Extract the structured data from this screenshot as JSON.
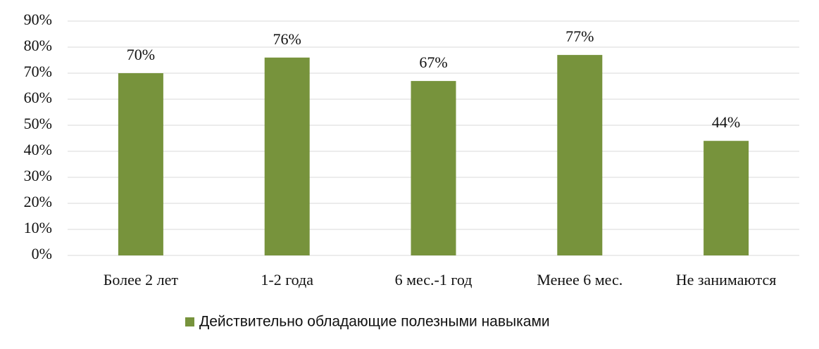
{
  "chart_data": {
    "type": "bar",
    "categories": [
      "Более 2 лет",
      "1-2 года",
      "6 мес.-1 год",
      "Менее 6 мес.",
      "Не занимаются"
    ],
    "series": [
      {
        "name": "Действительно обладающие полезными навыками",
        "color": "#77933c",
        "values": [
          70,
          76,
          67,
          77,
          44
        ],
        "value_labels": [
          "70%",
          "76%",
          "67%",
          "77%",
          "44%"
        ]
      }
    ],
    "ylim": [
      0,
      90
    ],
    "yticks": [
      {
        "value": 0,
        "label": "0%"
      },
      {
        "value": 10,
        "label": "10%"
      },
      {
        "value": 20,
        "label": "20%"
      },
      {
        "value": 30,
        "label": "30%"
      },
      {
        "value": 40,
        "label": "40%"
      },
      {
        "value": 50,
        "label": "50%"
      },
      {
        "value": 60,
        "label": "60%"
      },
      {
        "value": 70,
        "label": "70%"
      },
      {
        "value": 80,
        "label": "80%"
      },
      {
        "value": 90,
        "label": "90%"
      }
    ],
    "grid": true,
    "legend": "bottom"
  }
}
